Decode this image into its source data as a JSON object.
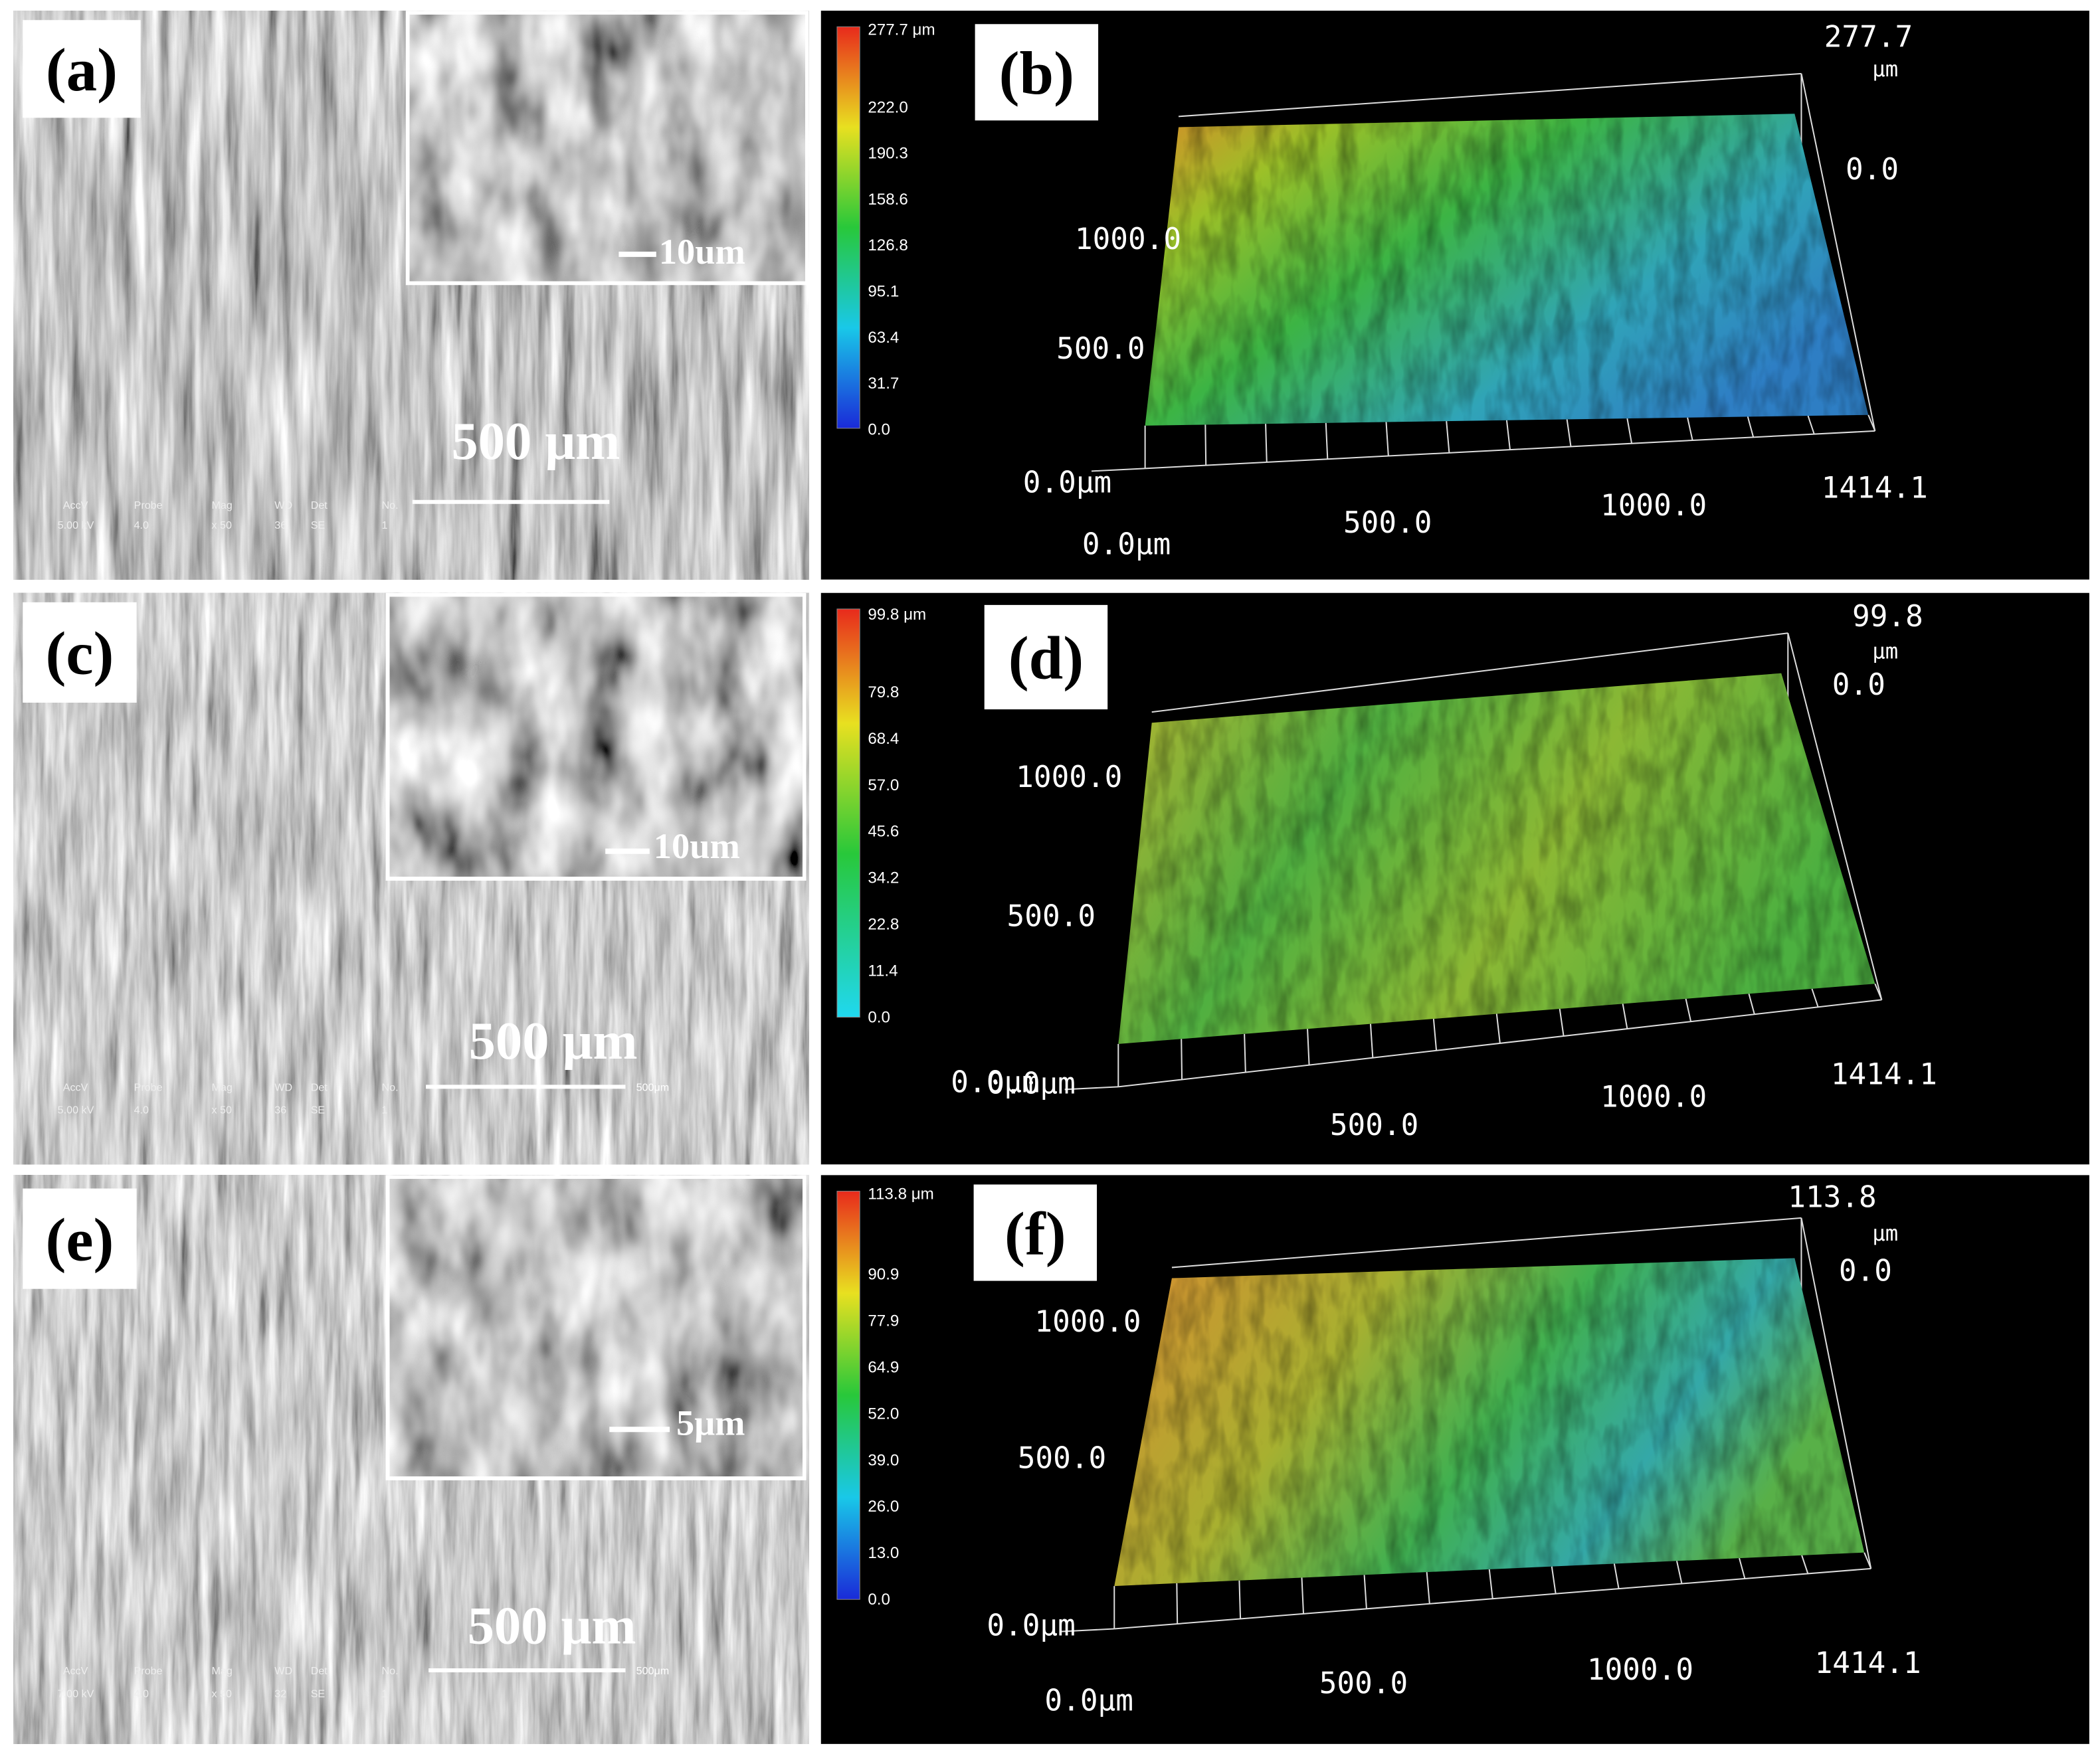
{
  "sem_panels": [
    {
      "label": "(a)",
      "inset_scale": "10um",
      "scale": "500 μm",
      "info_header": [
        "AccV",
        "Probe",
        "Mag",
        "WD",
        "Det",
        "No."
      ],
      "info_values": [
        "5.00 kV",
        "4.0",
        "x 50",
        "36",
        "SE",
        "1"
      ]
    },
    {
      "label": "(c)",
      "inset_scale": "10um",
      "scale": "500 μm",
      "bar_label": "500μm",
      "info_header": [
        "AccV",
        "Probe",
        "Mag",
        "WD",
        "Det",
        "No."
      ],
      "info_values": [
        "5.00 kV",
        "4.0",
        "x 50",
        "36",
        "SE",
        "1"
      ]
    },
    {
      "label": "(e)",
      "inset_scale": "5μm",
      "scale": "500 μm",
      "bar_label": "500μm",
      "info_header": [
        "AccV",
        "Probe",
        "Mag",
        "WD",
        "Det",
        "No."
      ],
      "info_values": [
        "7.00 kV",
        "4.0",
        "x 50",
        "32",
        "SE",
        "1"
      ]
    }
  ],
  "profile_panels": [
    {
      "label": "(b)",
      "colorbar_max": "277.7 μm",
      "colorbar_ticks": [
        "222.0",
        "190.3",
        "158.6",
        "126.8",
        "95.1",
        "63.4",
        "31.7",
        "0.0"
      ],
      "z_max": "277.7",
      "z_unit": "μm",
      "z_min": "0.0",
      "y_labels": [
        "1000.0",
        "500.0",
        "0.0μm"
      ],
      "x_labels": [
        "0.0μm",
        "500.0",
        "1000.0",
        "1414.1"
      ]
    },
    {
      "label": "(d)",
      "colorbar_max": "99.8 μm",
      "colorbar_ticks": [
        "79.8",
        "68.4",
        "57.0",
        "45.6",
        "34.2",
        "22.8",
        "11.4",
        "0.0"
      ],
      "z_max": "99.8",
      "z_unit": "μm",
      "z_min": "0.0",
      "y_labels": [
        "1000.0",
        "500.0",
        "0.0μm"
      ],
      "x_labels": [
        "0.0μm",
        "500.0",
        "1000.0",
        "1414.1"
      ]
    },
    {
      "label": "(f)",
      "colorbar_max": "113.8 μm",
      "colorbar_ticks": [
        "90.9",
        "77.9",
        "64.9",
        "52.0",
        "39.0",
        "26.0",
        "13.0",
        "0.0"
      ],
      "z_max": "113.8",
      "z_unit": "μm",
      "z_min": "0.0",
      "y_labels": [
        "1000.0",
        "500.0",
        "0.0μm"
      ],
      "x_labels": [
        "0.0μm",
        "500.0",
        "1000.0",
        "1414.1"
      ]
    }
  ]
}
